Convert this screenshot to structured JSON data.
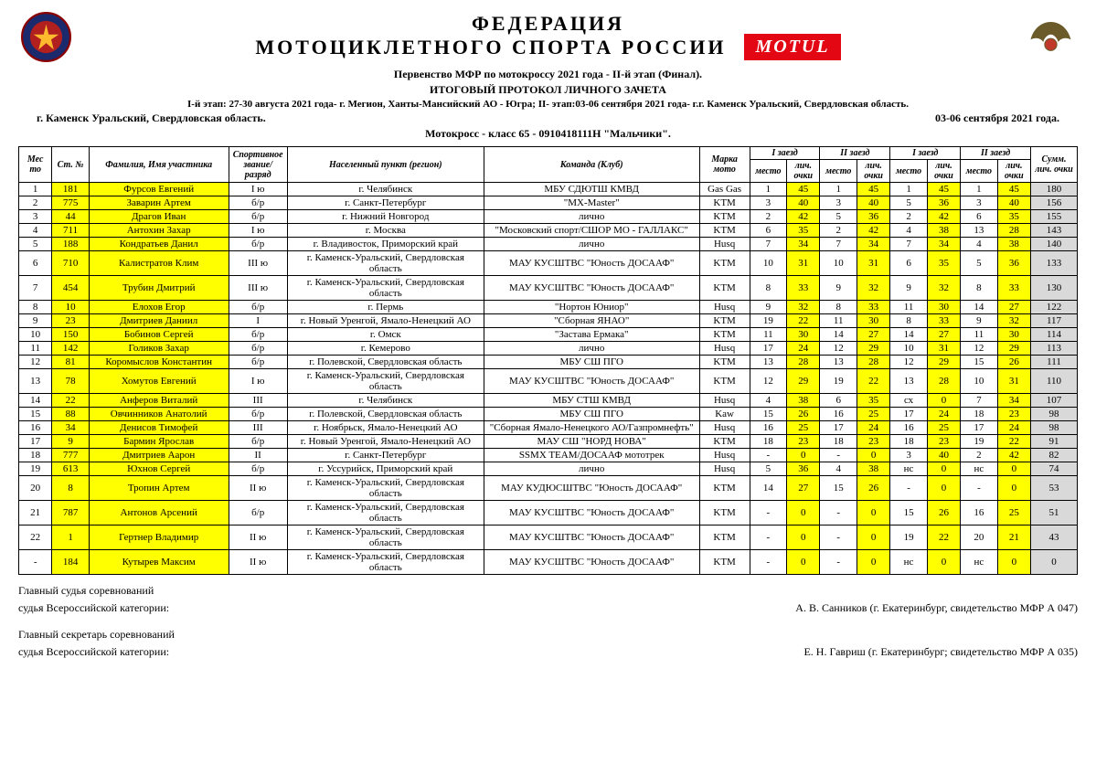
{
  "header": {
    "fed_line1": "ФЕДЕРАЦИЯ",
    "fed_line2": "МОТОЦИКЛЕТНОГО СПОРТА РОССИИ",
    "motul": "MOTUL"
  },
  "titles": {
    "event": "Первенство МФР по мотокроссу 2021 года - II-й этап (Финал).",
    "protocol": "ИТОГОВЫЙ ПРОТОКОЛ ЛИЧНОГО ЗАЧЕТА",
    "stage": "I-й этап: 27-30 августа 2021 года- г. Мегион, Ханты-Мансийский АО - Югра; II- этап:03-06 сентября 2021 года- г.г. Каменск Уральский, Свердловская область.",
    "city": "г. Каменск Уральский, Свердловская область.",
    "date": "03-06 сентября 2021 года.",
    "class": "Мотокросс - класс 65 - 0910418111Н \"Мальчики\"."
  },
  "columns": {
    "place": "Мес то",
    "stn": "Ст. №",
    "name": "Фамилия, Имя участника",
    "rank": "Спортивное звание/разряд",
    "region": "Населенный пункт (регион)",
    "team": "Команда (Клуб)",
    "bike": "Марка мото",
    "heat1": "I заезд",
    "heat2": "II заезд",
    "heat3": "I заезд",
    "heat4": "II заезд",
    "sub_place": "место",
    "sub_pts": "лич. очки",
    "sum": "Сумм. лич. очки"
  },
  "rows": [
    {
      "p": "1",
      "n": "181",
      "name": "Фурсов Евгений",
      "rk": "I ю",
      "reg": "г. Челябинск",
      "team": "МБУ СДЮТШ КМВД",
      "bike": "Gas Gas",
      "h": [
        [
          "1",
          "45"
        ],
        [
          "1",
          "45"
        ],
        [
          "1",
          "45"
        ],
        [
          "1",
          "45"
        ]
      ],
      "sum": "180"
    },
    {
      "p": "2",
      "n": "775",
      "name": "Заварин Артем",
      "rk": "б/р",
      "reg": "г. Санкт-Петербург",
      "team": "\"MX-Master\"",
      "bike": "KTM",
      "h": [
        [
          "3",
          "40"
        ],
        [
          "3",
          "40"
        ],
        [
          "5",
          "36"
        ],
        [
          "3",
          "40"
        ]
      ],
      "sum": "156"
    },
    {
      "p": "3",
      "n": "44",
      "name": "Драгов Иван",
      "rk": "б/р",
      "reg": "г. Нижний Новгород",
      "team": "лично",
      "bike": "KTM",
      "h": [
        [
          "2",
          "42"
        ],
        [
          "5",
          "36"
        ],
        [
          "2",
          "42"
        ],
        [
          "6",
          "35"
        ]
      ],
      "sum": "155"
    },
    {
      "p": "4",
      "n": "711",
      "name": "Антохин Захар",
      "rk": "I ю",
      "reg": "г. Москва",
      "team": "\"Московский спорт/СШОР МО - ГАЛЛАКС\"",
      "bike": "KTM",
      "h": [
        [
          "6",
          "35"
        ],
        [
          "2",
          "42"
        ],
        [
          "4",
          "38"
        ],
        [
          "13",
          "28"
        ]
      ],
      "sum": "143"
    },
    {
      "p": "5",
      "n": "188",
      "name": "Кондратьев Данил",
      "rk": "б/р",
      "reg": "г. Владивосток, Приморский край",
      "team": "лично",
      "bike": "Husq",
      "h": [
        [
          "7",
          "34"
        ],
        [
          "7",
          "34"
        ],
        [
          "7",
          "34"
        ],
        [
          "4",
          "38"
        ]
      ],
      "sum": "140"
    },
    {
      "p": "6",
      "n": "710",
      "name": "Калистратов Клим",
      "rk": "III ю",
      "reg": "г. Каменск-Уральский, Свердловская область",
      "team": "МАУ КУСШТВС \"Юность ДОСААФ\"",
      "bike": "KTM",
      "h": [
        [
          "10",
          "31"
        ],
        [
          "10",
          "31"
        ],
        [
          "6",
          "35"
        ],
        [
          "5",
          "36"
        ]
      ],
      "sum": "133"
    },
    {
      "p": "7",
      "n": "454",
      "name": "Трубин Дмитрий",
      "rk": "III ю",
      "reg": "г. Каменск-Уральский, Свердловская область",
      "team": "МАУ КУСШТВС \"Юность ДОСААФ\"",
      "bike": "KTM",
      "h": [
        [
          "8",
          "33"
        ],
        [
          "9",
          "32"
        ],
        [
          "9",
          "32"
        ],
        [
          "8",
          "33"
        ]
      ],
      "sum": "130"
    },
    {
      "p": "8",
      "n": "10",
      "name": "Елохов Егор",
      "rk": "б/р",
      "reg": "г. Пермь",
      "team": "\"Нортон Юниор\"",
      "bike": "Husq",
      "h": [
        [
          "9",
          "32"
        ],
        [
          "8",
          "33"
        ],
        [
          "11",
          "30"
        ],
        [
          "14",
          "27"
        ]
      ],
      "sum": "122"
    },
    {
      "p": "9",
      "n": "23",
      "name": "Дмитриев Даниил",
      "rk": "I",
      "reg": "г. Новый Уренгой, Ямало-Ненецкий АО",
      "team": "\"Сборная ЯНАО\"",
      "bike": "KTM",
      "h": [
        [
          "19",
          "22"
        ],
        [
          "11",
          "30"
        ],
        [
          "8",
          "33"
        ],
        [
          "9",
          "32"
        ]
      ],
      "sum": "117"
    },
    {
      "p": "10",
      "n": "150",
      "name": "Бобинов Сергей",
      "rk": "б/р",
      "reg": "г. Омск",
      "team": "\"Застава Ермака\"",
      "bike": "KTM",
      "h": [
        [
          "11",
          "30"
        ],
        [
          "14",
          "27"
        ],
        [
          "14",
          "27"
        ],
        [
          "11",
          "30"
        ]
      ],
      "sum": "114"
    },
    {
      "p": "11",
      "n": "142",
      "name": "Голиков Захар",
      "rk": "б/р",
      "reg": "г. Кемерово",
      "team": "лично",
      "bike": "Husq",
      "h": [
        [
          "17",
          "24"
        ],
        [
          "12",
          "29"
        ],
        [
          "10",
          "31"
        ],
        [
          "12",
          "29"
        ]
      ],
      "sum": "113"
    },
    {
      "p": "12",
      "n": "81",
      "name": "Коромыслов Константин",
      "rk": "б/р",
      "reg": "г. Полевской, Свердловская область",
      "team": "МБУ СШ ПГО",
      "bike": "KTM",
      "h": [
        [
          "13",
          "28"
        ],
        [
          "13",
          "28"
        ],
        [
          "12",
          "29"
        ],
        [
          "15",
          "26"
        ]
      ],
      "sum": "111"
    },
    {
      "p": "13",
      "n": "78",
      "name": "Хомутов Евгений",
      "rk": "I ю",
      "reg": "г. Каменск-Уральский, Свердловская область",
      "team": "МАУ КУСШТВС \"Юность ДОСААФ\"",
      "bike": "KTM",
      "h": [
        [
          "12",
          "29"
        ],
        [
          "19",
          "22"
        ],
        [
          "13",
          "28"
        ],
        [
          "10",
          "31"
        ]
      ],
      "sum": "110"
    },
    {
      "p": "14",
      "n": "22",
      "name": "Анферов Виталий",
      "rk": "III",
      "reg": "г. Челябинск",
      "team": "МБУ СТШ КМВД",
      "bike": "Husq",
      "h": [
        [
          "4",
          "38"
        ],
        [
          "6",
          "35"
        ],
        [
          "сх",
          "0"
        ],
        [
          "7",
          "34"
        ]
      ],
      "sum": "107"
    },
    {
      "p": "15",
      "n": "88",
      "name": "Овчинников Анатолий",
      "rk": "б/р",
      "reg": "г. Полевской, Свердловская область",
      "team": "МБУ СШ ПГО",
      "bike": "Kaw",
      "h": [
        [
          "15",
          "26"
        ],
        [
          "16",
          "25"
        ],
        [
          "17",
          "24"
        ],
        [
          "18",
          "23"
        ]
      ],
      "sum": "98"
    },
    {
      "p": "16",
      "n": "34",
      "name": "Денисов Тимофей",
      "rk": "III",
      "reg": "г. Ноябрьск, Ямало-Ненецкий АО",
      "team": "\"Сборная Ямало-Ненецкого АО/Газпромнефть\"",
      "bike": "Husq",
      "h": [
        [
          "16",
          "25"
        ],
        [
          "17",
          "24"
        ],
        [
          "16",
          "25"
        ],
        [
          "17",
          "24"
        ]
      ],
      "sum": "98"
    },
    {
      "p": "17",
      "n": "9",
      "name": "Бармин Ярослав",
      "rk": "б/р",
      "reg": "г. Новый Уренгой, Ямало-Ненецкий АО",
      "team": "МАУ СШ \"НОРД НОВА\"",
      "bike": "KTM",
      "h": [
        [
          "18",
          "23"
        ],
        [
          "18",
          "23"
        ],
        [
          "18",
          "23"
        ],
        [
          "19",
          "22"
        ]
      ],
      "sum": "91"
    },
    {
      "p": "18",
      "n": "777",
      "name": "Дмитриев Аарон",
      "rk": "II",
      "reg": "г. Санкт-Петербург",
      "team": "SSMX TEAM/ДОСААФ мототрек",
      "bike": "Husq",
      "h": [
        [
          "-",
          "0"
        ],
        [
          "-",
          "0"
        ],
        [
          "3",
          "40"
        ],
        [
          "2",
          "42"
        ]
      ],
      "sum": "82"
    },
    {
      "p": "19",
      "n": "613",
      "name": "Юхнов Сергей",
      "rk": "б/р",
      "reg": "г. Уссурийск, Приморский край",
      "team": "лично",
      "bike": "Husq",
      "h": [
        [
          "5",
          "36"
        ],
        [
          "4",
          "38"
        ],
        [
          "нс",
          "0"
        ],
        [
          "нс",
          "0"
        ]
      ],
      "sum": "74"
    },
    {
      "p": "20",
      "n": "8",
      "name": "Тропин Артем",
      "rk": "II ю",
      "reg": "г. Каменск-Уральский, Свердловская область",
      "team": "МАУ КУДЮСШТВС \"Юность ДОСААФ\"",
      "bike": "KTM",
      "h": [
        [
          "14",
          "27"
        ],
        [
          "15",
          "26"
        ],
        [
          "-",
          "0"
        ],
        [
          "-",
          "0"
        ]
      ],
      "sum": "53"
    },
    {
      "p": "21",
      "n": "787",
      "name": "Антонов Арсений",
      "rk": "б/р",
      "reg": "г. Каменск-Уральский, Свердловская область",
      "team": "МАУ КУСШТВС \"Юность ДОСААФ\"",
      "bike": "KTM",
      "h": [
        [
          "-",
          "0"
        ],
        [
          "-",
          "0"
        ],
        [
          "15",
          "26"
        ],
        [
          "16",
          "25"
        ]
      ],
      "sum": "51"
    },
    {
      "p": "22",
      "n": "1",
      "name": "Гертнер Владимир",
      "rk": "II ю",
      "reg": "г. Каменск-Уральский, Свердловская область",
      "team": "МАУ КУСШТВС \"Юность ДОСААФ\"",
      "bike": "KTM",
      "h": [
        [
          "-",
          "0"
        ],
        [
          "-",
          "0"
        ],
        [
          "19",
          "22"
        ],
        [
          "20",
          "21"
        ]
      ],
      "sum": "43"
    },
    {
      "p": "-",
      "n": "184",
      "name": "Кутырев Максим",
      "rk": "II ю",
      "reg": "г. Каменск-Уральский, Свердловская область",
      "team": "МАУ КУСШТВС \"Юность ДОСААФ\"",
      "bike": "KTM",
      "h": [
        [
          "-",
          "0"
        ],
        [
          "-",
          "0"
        ],
        [
          "нс",
          "0"
        ],
        [
          "нс",
          "0"
        ]
      ],
      "sum": "0"
    }
  ],
  "footer": {
    "judge_title": "Главный судья соревнований",
    "judge_cat": "судья Всероссийской категории:",
    "judge_name": "А. В. Санников (г. Екатеринбург, свидетельство МФР А 047)",
    "sec_title": "Главный секретарь соревнований",
    "sec_cat": "судья Всероссийской категории:",
    "sec_name": "Е. Н. Гавриш (г. Екатеринбург; свидетельство МФР А 035)"
  },
  "colors": {
    "highlight": "#ffff00",
    "sum_bg": "#d9d9d9",
    "motul_bg": "#e30613"
  }
}
